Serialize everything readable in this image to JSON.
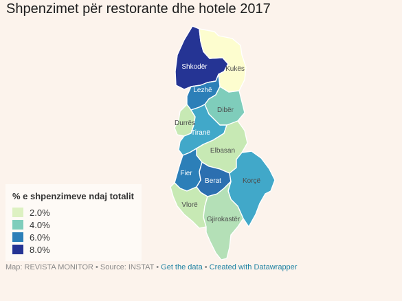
{
  "title": "Shpenzimet për restorante dhe hotele 2017",
  "legend": {
    "title": "% e shpenzimeve ndaj totalit",
    "items": [
      {
        "label": "2.0%",
        "color": "#ddf1c2"
      },
      {
        "label": "4.0%",
        "color": "#7fcdbb"
      },
      {
        "label": "6.0%",
        "color": "#2c7fb8"
      },
      {
        "label": "8.0%",
        "color": "#253494"
      }
    ]
  },
  "regions": [
    {
      "id": "shkoder",
      "name": "Shkodër",
      "color": "#253494"
    },
    {
      "id": "kukes",
      "name": "Kukës",
      "color": "#fdfdcf"
    },
    {
      "id": "lezhe",
      "name": "Lezhë",
      "color": "#2c7fb8"
    },
    {
      "id": "diber",
      "name": "Dibër",
      "color": "#7fcdbb"
    },
    {
      "id": "durres",
      "name": "Durrës",
      "color": "#c7e9b4"
    },
    {
      "id": "tirane",
      "name": "Tiranë",
      "color": "#41a8c9"
    },
    {
      "id": "elbasan",
      "name": "Elbasan",
      "color": "#c7e9b4"
    },
    {
      "id": "fier",
      "name": "Fier",
      "color": "#2c7fb8"
    },
    {
      "id": "berat",
      "name": "Berat",
      "color": "#2c6fb0"
    },
    {
      "id": "korce",
      "name": "Korçë",
      "color": "#41a8c9"
    },
    {
      "id": "vlore",
      "name": "Vlorë",
      "color": "#c7e9b4"
    },
    {
      "id": "gjirokaster",
      "name": "Gjirokastër",
      "color": "#b4e0b7"
    }
  ],
  "footer": {
    "source": "Map: REVISTA MONITOR • Source: INSTAT •",
    "get_data": "Get the data",
    "sep": "•",
    "created": "Created with Datawrapper"
  }
}
